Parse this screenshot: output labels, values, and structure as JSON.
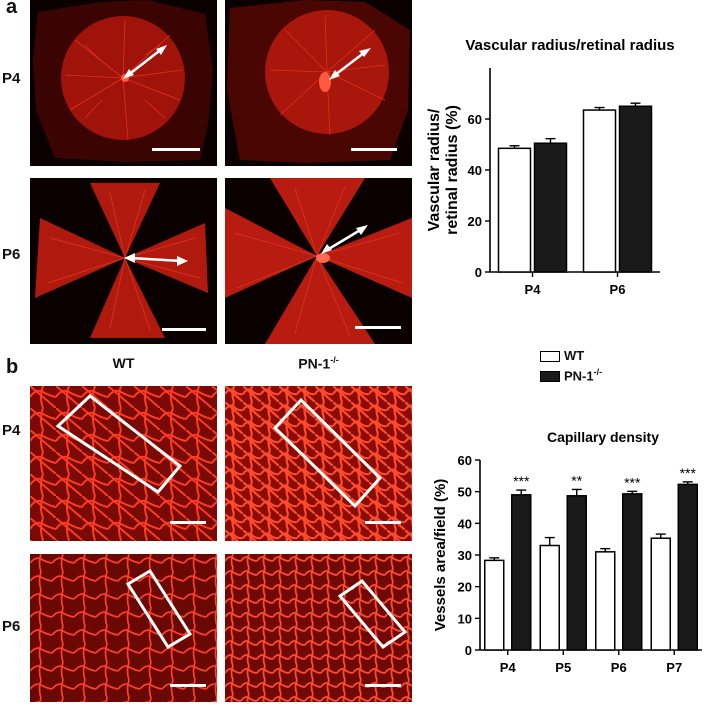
{
  "panel_a": {
    "letter": "a",
    "rows": [
      "P4",
      "P6"
    ],
    "columns": [
      "WT",
      "PN-1"
    ],
    "column_superscript": "-/-"
  },
  "panel_b": {
    "letter": "b",
    "rows": [
      "P4",
      "P6"
    ]
  },
  "legend": {
    "items": [
      {
        "label": "WT",
        "superscript": "",
        "fill": "#ffffff"
      },
      {
        "label": "PN-1",
        "superscript": "-/-",
        "fill": "#1a1a1a"
      }
    ]
  },
  "colors": {
    "wt": "#ffffff",
    "pn1": "#1a1a1a",
    "vessel": "#d8261a",
    "bg_dark": "#0a0000"
  },
  "chart_data": [
    {
      "type": "bar",
      "title": "Vascular radius/retinal radius",
      "ylabel": "Vascular radius/\nretinal radius (%)",
      "ylabel_lines": [
        "Vascular radius/",
        "retinal radius (%)"
      ],
      "xlabel": "",
      "categories": [
        "P4",
        "P6"
      ],
      "ylim": [
        0,
        80
      ],
      "yticks": [
        0,
        20,
        40,
        60
      ],
      "series": [
        {
          "name": "WT",
          "values": [
            48.5,
            63.5
          ],
          "errors": [
            1.0,
            1.0
          ]
        },
        {
          "name": "PN-1-/-",
          "values": [
            50.5,
            65.0
          ],
          "errors": [
            1.8,
            1.2
          ]
        }
      ],
      "annotations": [
        "",
        ""
      ]
    },
    {
      "type": "bar",
      "title": "Capillary density",
      "ylabel": "Vessels area/field (%)",
      "ylabel_lines": [
        "Vessels area/field (%)"
      ],
      "xlabel": "",
      "categories": [
        "P4",
        "P5",
        "P6",
        "P7"
      ],
      "ylim": [
        0,
        60
      ],
      "yticks": [
        0,
        10,
        20,
        30,
        40,
        50,
        60
      ],
      "series": [
        {
          "name": "WT",
          "values": [
            28.3,
            33.0,
            31.0,
            35.3
          ],
          "errors": [
            0.8,
            2.5,
            1.0,
            1.3
          ]
        },
        {
          "name": "PN-1-/-",
          "values": [
            49.0,
            48.7,
            49.3,
            52.3
          ],
          "errors": [
            1.5,
            2.0,
            0.8,
            0.8
          ]
        }
      ],
      "annotations": [
        "***",
        "**",
        "***",
        "***"
      ]
    }
  ]
}
